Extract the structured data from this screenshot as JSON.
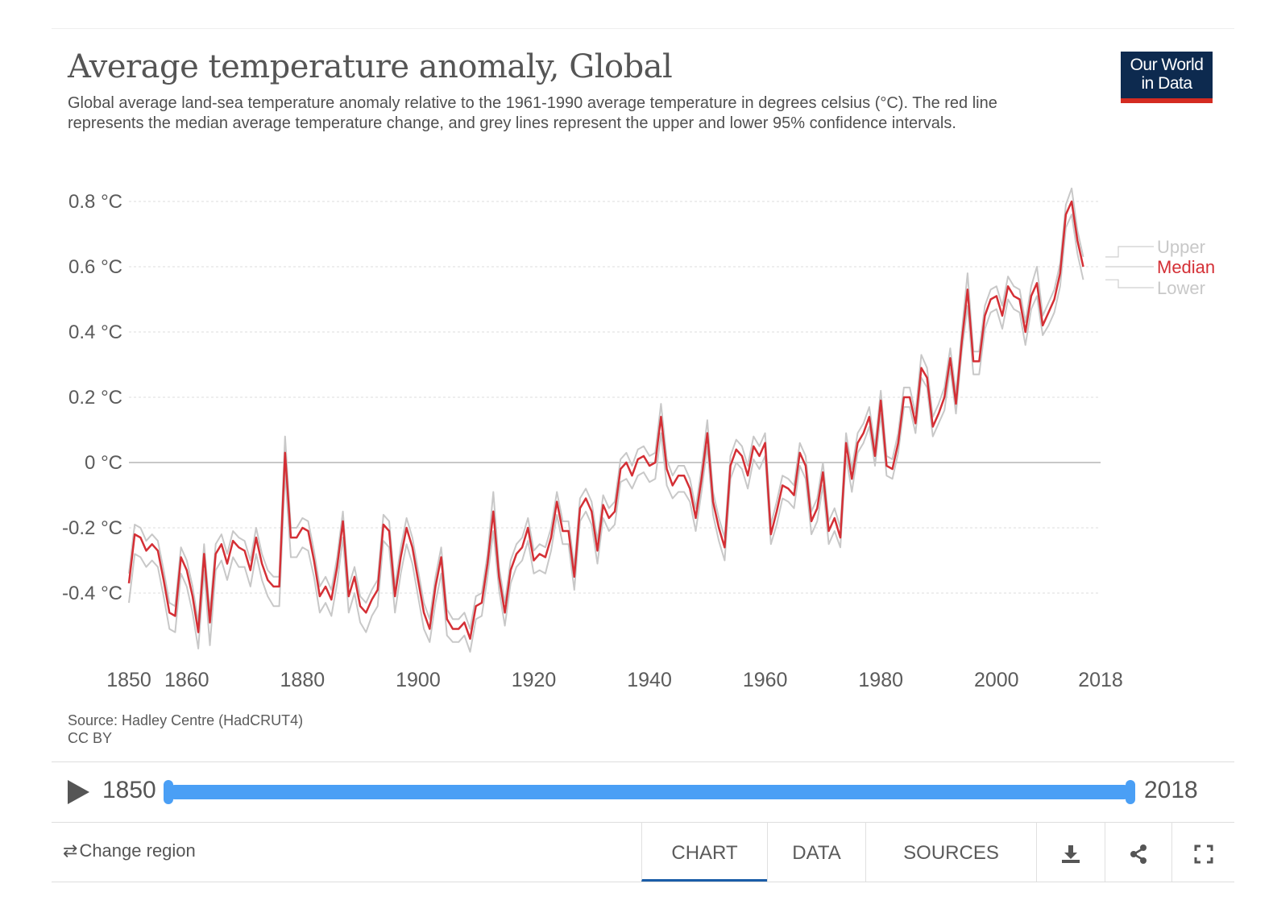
{
  "header": {
    "title": "Average temperature anomaly, Global",
    "subtitle": "Global average land-sea temperature anomaly relative to the 1961-1990 average temperature in degrees celsius (°C). The red line represents the median average temperature change, and grey lines represent the upper and lower 95% confidence intervals.",
    "logo_line1": "Our World",
    "logo_line2": "in Data"
  },
  "footer": {
    "source": "Source: Hadley Centre (HadCRUT4)",
    "license": "CC BY"
  },
  "timeline": {
    "start": "1850",
    "end": "2018"
  },
  "controls": {
    "change_region": "Change region",
    "tabs": [
      "CHART",
      "DATA",
      "SOURCES"
    ],
    "active_tab": "CHART"
  },
  "colors": {
    "median": "#d42f35",
    "bounds": "#c8c8c8",
    "accent": "#4a9ff5",
    "logo_bg": "#0d2a4f",
    "logo_bar": "#d42b21"
  },
  "chart_data": {
    "type": "line",
    "y_unit": "°C",
    "xlim": [
      1850,
      2018
    ],
    "ylim": [
      -0.62,
      0.85
    ],
    "y_ticks": [
      -0.4,
      -0.2,
      0,
      0.2,
      0.4,
      0.6,
      0.8
    ],
    "y_tick_labels": [
      "-0.4 °C",
      "-0.2 °C",
      "0 °C",
      "0.2 °C",
      "0.4 °C",
      "0.6 °C",
      "0.8 °C"
    ],
    "x_ticks": [
      1850,
      1860,
      1880,
      1900,
      1920,
      1940,
      1960,
      1980,
      2000,
      2018
    ],
    "x_tick_labels": [
      "1850",
      "1860",
      "1880",
      "1900",
      "1920",
      "1940",
      "1960",
      "1980",
      "2000",
      "2018"
    ],
    "grid": "horizontal dashed",
    "legend_placement": "right (end-of-line labels)",
    "x_start": 1850,
    "series": [
      {
        "name": "Median",
        "values": [
          -0.37,
          -0.22,
          -0.23,
          -0.27,
          -0.25,
          -0.27,
          -0.36,
          -0.46,
          -0.47,
          -0.29,
          -0.33,
          -0.41,
          -0.52,
          -0.28,
          -0.49,
          -0.28,
          -0.25,
          -0.31,
          -0.24,
          -0.26,
          -0.27,
          -0.33,
          -0.23,
          -0.31,
          -0.36,
          -0.38,
          -0.38,
          0.03,
          -0.23,
          -0.23,
          -0.2,
          -0.21,
          -0.3,
          -0.41,
          -0.38,
          -0.42,
          -0.32,
          -0.18,
          -0.41,
          -0.35,
          -0.44,
          -0.46,
          -0.42,
          -0.39,
          -0.19,
          -0.21,
          -0.41,
          -0.29,
          -0.2,
          -0.26,
          -0.36,
          -0.46,
          -0.51,
          -0.38,
          -0.29,
          -0.48,
          -0.51,
          -0.51,
          -0.49,
          -0.54,
          -0.44,
          -0.43,
          -0.31,
          -0.15,
          -0.35,
          -0.46,
          -0.33,
          -0.28,
          -0.26,
          -0.2,
          -0.3,
          -0.28,
          -0.29,
          -0.23,
          -0.12,
          -0.21,
          -0.21,
          -0.35,
          -0.14,
          -0.11,
          -0.15,
          -0.27,
          -0.13,
          -0.17,
          -0.15,
          -0.02,
          0.0,
          -0.04,
          0.01,
          0.02,
          -0.01,
          0.0,
          0.14,
          -0.02,
          -0.07,
          -0.04,
          -0.04,
          -0.08,
          -0.17,
          -0.05,
          0.09,
          -0.12,
          -0.2,
          -0.26,
          -0.01,
          0.04,
          0.02,
          -0.04,
          0.05,
          0.02,
          0.06,
          -0.22,
          -0.15,
          -0.07,
          -0.08,
          -0.1,
          0.03,
          -0.01,
          -0.18,
          -0.14,
          -0.03,
          -0.21,
          -0.17,
          -0.23,
          0.06,
          -0.05,
          0.06,
          0.09,
          0.14,
          0.02,
          0.19,
          -0.01,
          -0.02,
          0.06,
          0.2,
          0.2,
          0.12,
          0.29,
          0.26,
          0.11,
          0.15,
          0.2,
          0.32,
          0.18,
          0.37,
          0.53,
          0.31,
          0.31,
          0.45,
          0.5,
          0.51,
          0.45,
          0.54,
          0.51,
          0.5,
          0.4,
          0.51,
          0.55,
          0.42,
          0.46,
          0.5,
          0.58,
          0.76,
          0.8,
          0.68,
          0.6
        ]
      },
      {
        "name": "Upper",
        "values": [
          -0.34,
          -0.19,
          -0.2,
          -0.24,
          -0.22,
          -0.24,
          -0.33,
          -0.43,
          -0.44,
          -0.26,
          -0.3,
          -0.38,
          -0.49,
          -0.25,
          -0.46,
          -0.25,
          -0.22,
          -0.28,
          -0.21,
          -0.23,
          -0.24,
          -0.3,
          -0.2,
          -0.28,
          -0.33,
          -0.35,
          -0.35,
          0.08,
          -0.2,
          -0.2,
          -0.17,
          -0.18,
          -0.27,
          -0.38,
          -0.35,
          -0.39,
          -0.29,
          -0.15,
          -0.38,
          -0.32,
          -0.41,
          -0.43,
          -0.39,
          -0.36,
          -0.16,
          -0.18,
          -0.38,
          -0.26,
          -0.17,
          -0.23,
          -0.33,
          -0.43,
          -0.48,
          -0.35,
          -0.26,
          -0.45,
          -0.48,
          -0.48,
          -0.46,
          -0.51,
          -0.41,
          -0.4,
          -0.28,
          -0.09,
          -0.32,
          -0.43,
          -0.3,
          -0.25,
          -0.23,
          -0.17,
          -0.27,
          -0.25,
          -0.26,
          -0.2,
          -0.09,
          -0.18,
          -0.18,
          -0.32,
          -0.11,
          -0.08,
          -0.12,
          -0.24,
          -0.1,
          -0.14,
          -0.12,
          0.01,
          0.03,
          -0.01,
          0.04,
          0.05,
          0.02,
          0.03,
          0.18,
          0.01,
          -0.04,
          -0.01,
          -0.01,
          -0.05,
          -0.14,
          -0.02,
          0.13,
          -0.09,
          -0.17,
          -0.23,
          0.02,
          0.07,
          0.05,
          -0.01,
          0.08,
          0.05,
          0.09,
          -0.19,
          -0.12,
          -0.04,
          -0.05,
          -0.07,
          0.06,
          0.02,
          -0.15,
          -0.11,
          0.0,
          -0.18,
          -0.14,
          -0.2,
          0.09,
          -0.02,
          0.09,
          0.12,
          0.17,
          0.05,
          0.22,
          0.02,
          0.01,
          0.09,
          0.23,
          0.23,
          0.15,
          0.33,
          0.29,
          0.14,
          0.18,
          0.23,
          0.35,
          0.21,
          0.4,
          0.58,
          0.34,
          0.34,
          0.48,
          0.53,
          0.54,
          0.48,
          0.57,
          0.54,
          0.53,
          0.43,
          0.54,
          0.6,
          0.45,
          0.49,
          0.53,
          0.61,
          0.79,
          0.84,
          0.71,
          0.63
        ]
      },
      {
        "name": "Lower",
        "values": [
          -0.43,
          -0.28,
          -0.29,
          -0.32,
          -0.3,
          -0.32,
          -0.41,
          -0.51,
          -0.52,
          -0.34,
          -0.38,
          -0.46,
          -0.57,
          -0.33,
          -0.56,
          -0.33,
          -0.3,
          -0.36,
          -0.29,
          -0.32,
          -0.32,
          -0.38,
          -0.28,
          -0.36,
          -0.41,
          -0.44,
          -0.44,
          -0.03,
          -0.29,
          -0.29,
          -0.26,
          -0.27,
          -0.35,
          -0.46,
          -0.43,
          -0.47,
          -0.37,
          -0.23,
          -0.46,
          -0.4,
          -0.49,
          -0.52,
          -0.47,
          -0.44,
          -0.24,
          -0.26,
          -0.46,
          -0.34,
          -0.25,
          -0.31,
          -0.41,
          -0.51,
          -0.55,
          -0.43,
          -0.34,
          -0.53,
          -0.55,
          -0.55,
          -0.53,
          -0.58,
          -0.48,
          -0.47,
          -0.35,
          -0.21,
          -0.39,
          -0.5,
          -0.37,
          -0.32,
          -0.3,
          -0.24,
          -0.34,
          -0.33,
          -0.34,
          -0.27,
          -0.16,
          -0.25,
          -0.25,
          -0.39,
          -0.18,
          -0.15,
          -0.19,
          -0.31,
          -0.17,
          -0.21,
          -0.19,
          -0.06,
          -0.05,
          -0.08,
          -0.04,
          -0.03,
          -0.06,
          -0.05,
          0.09,
          -0.07,
          -0.11,
          -0.09,
          -0.09,
          -0.12,
          -0.21,
          -0.09,
          0.05,
          -0.16,
          -0.24,
          -0.3,
          -0.05,
          0.0,
          -0.02,
          -0.08,
          0.01,
          -0.02,
          0.02,
          -0.25,
          -0.19,
          -0.11,
          -0.12,
          -0.14,
          -0.01,
          -0.05,
          -0.22,
          -0.18,
          -0.07,
          -0.25,
          -0.21,
          -0.26,
          0.02,
          -0.09,
          0.03,
          0.06,
          0.11,
          -0.01,
          0.15,
          -0.04,
          -0.05,
          0.03,
          0.17,
          0.17,
          0.09,
          0.26,
          0.23,
          0.08,
          0.12,
          0.16,
          0.29,
          0.15,
          0.34,
          0.48,
          0.27,
          0.27,
          0.41,
          0.46,
          0.47,
          0.41,
          0.5,
          0.47,
          0.46,
          0.36,
          0.47,
          0.51,
          0.39,
          0.42,
          0.46,
          0.54,
          0.72,
          0.76,
          0.64,
          0.56
        ]
      }
    ]
  }
}
